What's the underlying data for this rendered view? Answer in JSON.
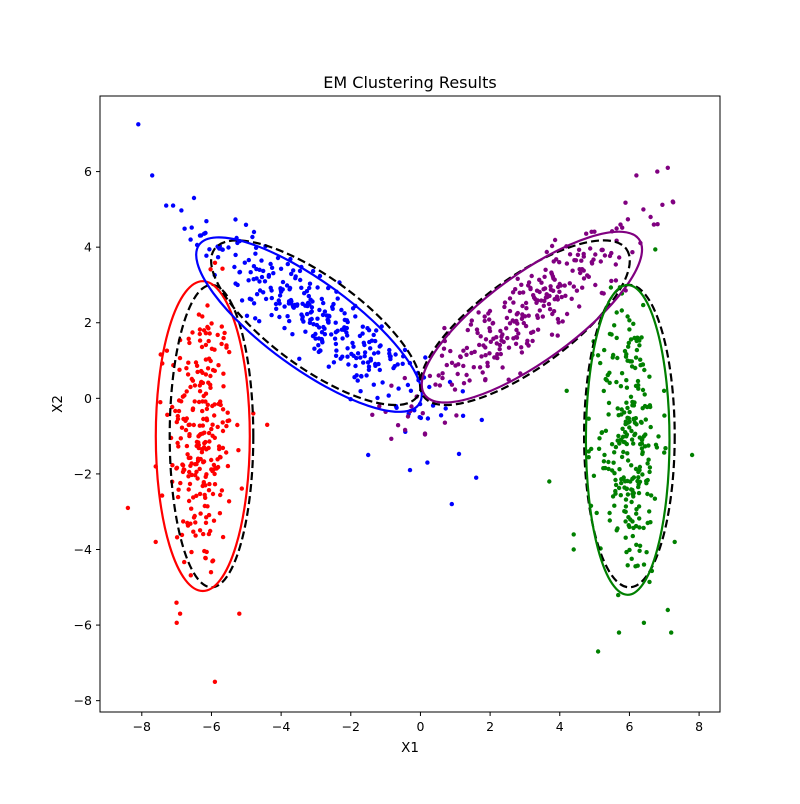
{
  "chart_data": {
    "type": "scatter",
    "title": "EM Clustering Results",
    "xlabel": "X1",
    "ylabel": "X2",
    "xlim": [
      -9.2,
      8.6
    ],
    "ylim": [
      -8.3,
      8.0
    ],
    "x_ticks": [
      -8,
      -6,
      -4,
      -2,
      0,
      2,
      4,
      6,
      8
    ],
    "y_ticks": [
      -8,
      -6,
      -4,
      -2,
      0,
      2,
      4,
      6
    ],
    "grid": false,
    "legend": "none",
    "clusters": [
      {
        "color": "#ff0000",
        "center": [
          -6.3,
          -1.0
        ],
        "spread": [
          0.45,
          1.9
        ],
        "angle_deg": 0,
        "n_points": 260,
        "fitted_ellipse": {
          "center": [
            -6.25,
            -1.0
          ],
          "width": 2.7,
          "height": 8.2,
          "angle_deg": 0,
          "color": "#ff0000"
        },
        "true_ellipse": {
          "center": [
            -6.0,
            -1.0
          ],
          "width": 2.4,
          "height": 8.0,
          "angle_deg": 0
        }
      },
      {
        "color": "#0000ff",
        "center": [
          -2.8,
          2.0
        ],
        "spread": [
          2.0,
          0.45
        ],
        "angle_deg": -36,
        "n_points": 300,
        "fitted_ellipse": {
          "center": [
            -3.2,
            1.95
          ],
          "width": 7.8,
          "height": 2.3,
          "angle_deg": -36,
          "color": "#0000ff"
        },
        "true_ellipse": {
          "center": [
            -3.0,
            2.0
          ],
          "width": 7.2,
          "height": 2.4,
          "angle_deg": -36
        }
      },
      {
        "color": "#800080",
        "center": [
          3.0,
          2.2
        ],
        "spread": [
          2.0,
          0.45
        ],
        "angle_deg": 36,
        "n_points": 270,
        "fitted_ellipse": {
          "center": [
            3.2,
            2.15
          ],
          "width": 7.6,
          "height": 2.3,
          "angle_deg": 36,
          "color": "#800080"
        },
        "true_ellipse": {
          "center": [
            3.0,
            2.0
          ],
          "width": 7.2,
          "height": 2.4,
          "angle_deg": 36
        }
      },
      {
        "color": "#008000",
        "center": [
          6.0,
          -1.0
        ],
        "spread": [
          0.45,
          1.9
        ],
        "angle_deg": 0,
        "n_points": 260,
        "fitted_ellipse": {
          "center": [
            5.95,
            -1.1
          ],
          "width": 2.4,
          "height": 8.2,
          "angle_deg": 0,
          "color": "#008000"
        },
        "true_ellipse": {
          "center": [
            6.0,
            -1.0
          ],
          "width": 2.6,
          "height": 8.0,
          "angle_deg": 0
        }
      }
    ],
    "outliers": [
      {
        "x": -8.1,
        "y": 7.25,
        "color": "#0000ff"
      },
      {
        "x": -7.7,
        "y": 5.9,
        "color": "#0000ff"
      },
      {
        "x": -7.3,
        "y": 5.1,
        "color": "#0000ff"
      },
      {
        "x": -7.1,
        "y": 5.1,
        "color": "#0000ff"
      },
      {
        "x": -6.5,
        "y": 5.3,
        "color": "#0000ff"
      },
      {
        "x": -6.6,
        "y": 4.2,
        "color": "#0000ff"
      },
      {
        "x": -1.5,
        "y": -1.5,
        "color": "#0000ff"
      },
      {
        "x": -0.3,
        "y": -1.9,
        "color": "#0000ff"
      },
      {
        "x": 0.2,
        "y": -1.7,
        "color": "#0000ff"
      },
      {
        "x": 0.9,
        "y": -2.8,
        "color": "#0000ff"
      },
      {
        "x": 1.6,
        "y": -2.1,
        "color": "#0000ff"
      },
      {
        "x": -8.4,
        "y": -2.9,
        "color": "#ff0000"
      },
      {
        "x": -7.6,
        "y": -3.8,
        "color": "#ff0000"
      },
      {
        "x": -7.6,
        "y": -1.8,
        "color": "#ff0000"
      },
      {
        "x": -6.9,
        "y": -5.7,
        "color": "#ff0000"
      },
      {
        "x": -5.9,
        "y": -7.5,
        "color": "#ff0000"
      },
      {
        "x": -5.2,
        "y": -5.7,
        "color": "#ff0000"
      },
      {
        "x": -4.8,
        "y": -0.4,
        "color": "#ff0000"
      },
      {
        "x": -4.4,
        "y": -0.7,
        "color": "#ff0000"
      },
      {
        "x": 6.2,
        "y": 5.9,
        "color": "#800080"
      },
      {
        "x": 6.8,
        "y": 6.0,
        "color": "#800080"
      },
      {
        "x": 7.1,
        "y": 6.1,
        "color": "#800080"
      },
      {
        "x": 6.4,
        "y": 5.0,
        "color": "#800080"
      },
      {
        "x": 7.8,
        "y": -1.5,
        "color": "#008000"
      },
      {
        "x": 7.2,
        "y": -6.2,
        "color": "#008000"
      },
      {
        "x": 7.1,
        "y": -5.6,
        "color": "#008000"
      },
      {
        "x": 5.1,
        "y": -6.7,
        "color": "#008000"
      },
      {
        "x": 5.7,
        "y": -6.2,
        "color": "#008000"
      },
      {
        "x": 4.4,
        "y": -4.0,
        "color": "#008000"
      },
      {
        "x": 4.4,
        "y": -3.6,
        "color": "#008000"
      },
      {
        "x": 3.7,
        "y": -2.2,
        "color": "#008000"
      },
      {
        "x": 4.2,
        "y": 0.2,
        "color": "#008000"
      },
      {
        "x": 7.3,
        "y": -3.8,
        "color": "#008000"
      }
    ]
  }
}
